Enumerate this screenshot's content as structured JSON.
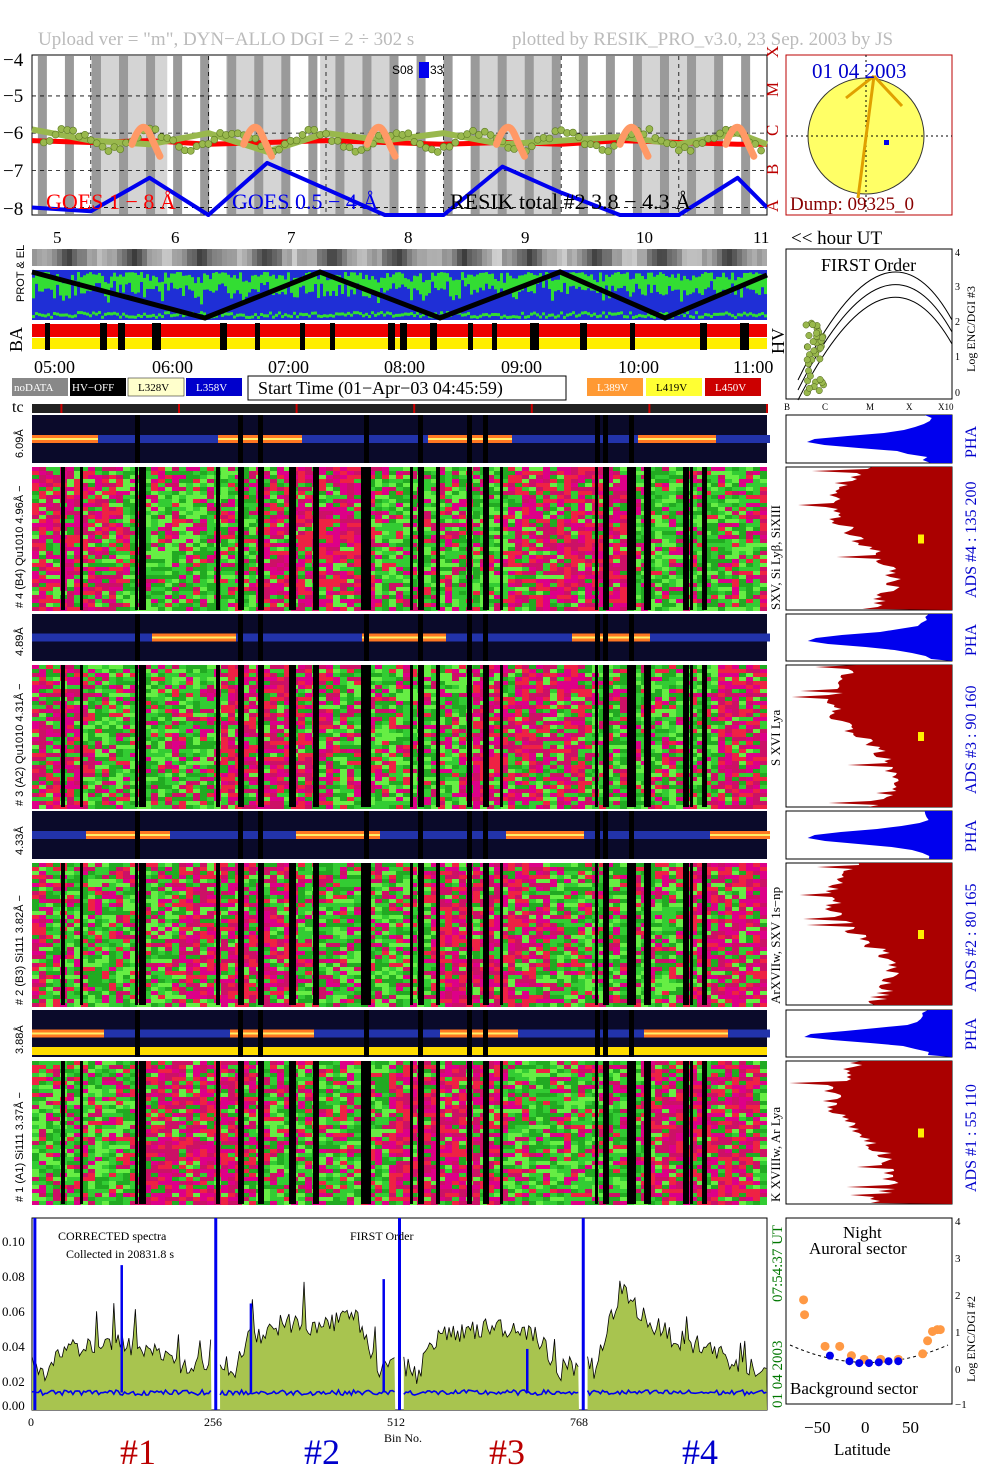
{
  "header": {
    "left": "Upload ver = \"m\", DYN−ALLO DGI =   2 ÷ 302 s",
    "right": "plotted by RESIK_PRO_v3.0, 23 Sep. 2003 by JS"
  },
  "colors": {
    "goes_long": "#ff0000",
    "goes_short": "#0000ee",
    "resik_total": "#99b84d",
    "resik_orange": "#ff9966",
    "sun_disk": "#ffff66",
    "disk_title": "#0000cc",
    "dump_label": "#880000",
    "accent_red": "#bb0000",
    "accent_blue": "#0000cc"
  },
  "goes_panel": {
    "y_ticks": [
      "−4",
      "−5",
      "−6",
      "−7",
      "−8"
    ],
    "class_letters": [
      "X",
      "M",
      "C",
      "B",
      "A"
    ],
    "legend_long": "GOES 1 − 8 Å",
    "legend_short": "GOES 0.5 − 4 Å",
    "legend_resik": "RESIK total #2  3.8 − 4.3 Å",
    "s08_label": "S08",
    "s08_value": "33"
  },
  "disk_panel": {
    "date": "01 04 2003",
    "dump": "Dump: 09325_0"
  },
  "hour_axis": {
    "ticks": [
      "5",
      "6",
      "7",
      "8",
      "9",
      "10",
      "11"
    ],
    "label": "<< hour UT"
  },
  "strip_labels": {
    "prot": "PROT & EL",
    "ba": "BA",
    "hv": "HV"
  },
  "time_axis": {
    "ticks": [
      "05:00",
      "06:00",
      "07:00",
      "08:00",
      "09:00",
      "10:00",
      "11:00"
    ]
  },
  "legend_row": {
    "nodata": "noDATA",
    "hv_off": "HV−OFF",
    "l328": "L328V",
    "l358": "L358V",
    "start_time": "Start Time (01−Apr−03 04:45:59)",
    "l389": "L389V",
    "l419": "L419V",
    "l450": "L450V"
  },
  "first_order_panel": {
    "title": "FIRST Order",
    "y_ticks": [
      "4",
      "3",
      "2",
      "1",
      "0"
    ],
    "y_label": "Log ENC/DGI #3",
    "x_ticks": [
      "B",
      "C",
      "M",
      "X",
      "X10"
    ]
  },
  "tc_label": "tc",
  "channels": [
    {
      "pha_label": "6.09Å",
      "main_label": "# 4 (B4) Qu1010 4.96Å −",
      "line_label": "SXV, Si Lyβ, SiXIII",
      "ads": "ADS #4 :  135 200",
      "pha": "PHA"
    },
    {
      "pha_label": "4.89Å",
      "main_label": "# 3 (A2) Qu1010 4.31Å −",
      "line_label": "S XVI Lya",
      "ads": "ADS #3 :   90 160",
      "pha": "PHA"
    },
    {
      "pha_label": "4.33Å",
      "main_label": "# 2 (B3) Si111  3.82Å −",
      "line_label": "ArXVIIw, SXV 1s−np",
      "ads": "ADS #2 :   80 165",
      "pha": "PHA"
    },
    {
      "pha_label": "3.88Å",
      "main_label": "# 1 (A1) Si111  3.37Å −",
      "line_label": "K XVIIIw, Ar Lya",
      "ads": "ADS #1 :   55 110",
      "pha": "PHA"
    }
  ],
  "spectrum_panel": {
    "note1": "CORRECTED spectra",
    "note2": "Collected in 20831.8 s",
    "note3": "FIRST Order",
    "y_ticks": [
      "0.10",
      "0.08",
      "0.06",
      "0.04",
      "0.02",
      "0.00"
    ],
    "x_ticks": [
      "0",
      "256",
      "512",
      "768"
    ],
    "x_label": "Bin No.",
    "right_time": "07:54:37 UT",
    "right_date": "01 04 2003",
    "detector_labels": [
      "#1",
      "#2",
      "#3",
      "#4"
    ]
  },
  "latitude_panel": {
    "title1": "Night",
    "title2": "Auroral sector",
    "bottom": "Background sector",
    "x_ticks": [
      "−50",
      "0",
      "50"
    ],
    "x_label": "Latitude",
    "y_ticks": [
      "4",
      "3",
      "2",
      "1",
      "0",
      "−1"
    ],
    "y_label": "Log ENC/DGI #2"
  },
  "chart_data": [
    {
      "type": "line",
      "title": "",
      "x": [
        4.75,
        5.25,
        5.75,
        6.25,
        6.75,
        7.25,
        7.75,
        8.25,
        8.75,
        9.25,
        9.75,
        10.25,
        10.75,
        11.0
      ],
      "series": [
        {
          "name": "GOES 1 − 8 Å",
          "values": [
            -6.2,
            -6.25,
            -6.2,
            -6.3,
            -6.25,
            -6.2,
            -6.25,
            -6.3,
            -6.25,
            -6.3,
            -6.2,
            -6.25,
            -6.3,
            -6.3
          ]
        },
        {
          "name": "GOES 0.5 − 4 Å",
          "values": [
            -8.0,
            -8.1,
            -7.2,
            -8.2,
            -6.8,
            -7.5,
            -8.2,
            -8.2,
            -6.9,
            -7.6,
            -8.2,
            -8.2,
            -7.2,
            -8.0
          ]
        },
        {
          "name": "RESIK total #2  3.8 − 4.3 Å",
          "values": [
            -5.9,
            -6.2,
            -6.3,
            -6.0,
            -6.5,
            -6.0,
            -6.2,
            -6.0,
            -6.3,
            -6.2,
            -6.1,
            -6.3,
            -6.0,
            -6.3
          ]
        }
      ],
      "xlim": [
        4.75,
        11.0
      ],
      "ylim": [
        -8.2,
        -3.9
      ]
    },
    {
      "type": "area",
      "xlabel": "Bin No.",
      "ylim": [
        0,
        0.11
      ],
      "xlim": [
        0,
        1024
      ],
      "x": [
        0,
        40,
        80,
        120,
        160,
        200,
        256,
        300,
        350,
        400,
        450,
        512,
        560,
        600,
        650,
        700,
        768,
        820,
        860,
        900,
        950,
        1000,
        1024
      ],
      "series": [
        {
          "values": [
            0.01,
            0.035,
            0.037,
            0.038,
            0.035,
            0.03,
            0.0,
            0.04,
            0.05,
            0.048,
            0.055,
            0.0,
            0.04,
            0.045,
            0.048,
            0.045,
            0.0,
            0.07,
            0.05,
            0.04,
            0.035,
            0.02,
            0.005
          ]
        },
        {
          "values": [
            0.01,
            0.008,
            0.008,
            0.008,
            0.008,
            0.008,
            0.0,
            0.015,
            0.013,
            0.012,
            0.01,
            0.0,
            0.012,
            0.012,
            0.011,
            0.01,
            0.0,
            0.014,
            0.011,
            0.009,
            0.008,
            0.007,
            0.005
          ]
        }
      ]
    },
    {
      "type": "scatter",
      "xlabel": "Latitude",
      "ylabel": "Log ENC/DGI #2",
      "xlim": [
        -85,
        85
      ],
      "ylim": [
        -1,
        4
      ],
      "series": [
        {
          "x": [
            -67,
            -66,
            -45,
            -30,
            -18,
            -5,
            12,
            30,
            55,
            60,
            65,
            70,
            73
          ],
          "y": [
            1.8,
            1.4,
            0.55,
            0.55,
            0.3,
            0.2,
            0.2,
            0.2,
            0.35,
            0.7,
            0.95,
            1.0,
            1.0
          ]
        },
        {
          "x": [
            -40,
            -20,
            -10,
            0,
            10,
            20,
            30
          ],
          "y": [
            0.3,
            0.15,
            0.1,
            0.1,
            0.12,
            0.15,
            0.15
          ]
        }
      ]
    }
  ]
}
